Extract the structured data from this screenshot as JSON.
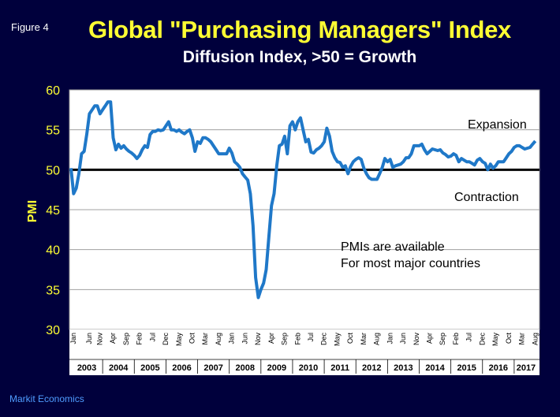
{
  "figure_label": "Figure 4",
  "title": "Global \"Purchasing Managers\" Index",
  "subtitle": "Diffusion Index, >50 = Growth",
  "source": "Markit Economics",
  "colors": {
    "background": "#00003c",
    "plot_background": "#ffffff",
    "line": "#1f78c8",
    "title": "#ffff33",
    "threshold": "#000000"
  },
  "chart_data": {
    "type": "line",
    "ylabel": "PMI",
    "ylim": [
      30,
      60
    ],
    "yticks": [
      30,
      35,
      40,
      45,
      50,
      55,
      60
    ],
    "threshold": 50,
    "grid": true,
    "start": "2003-01",
    "month_ticks": [
      "Jan",
      "Apr",
      "Jul",
      "Oct",
      "Jan",
      "Apr",
      "Jul",
      "Oct",
      "Jan",
      "Apr",
      "Jul",
      "Oct",
      "Jan",
      "Apr",
      "Jul",
      "Oct",
      "Jan",
      "Apr",
      "Jul",
      "Oct"
    ],
    "x_tick_labels": [
      {
        "date": "2003-01",
        "label": "Jan"
      },
      {
        "date": "2003-07",
        "label": "Jun"
      },
      {
        "date": "2003-11",
        "label": "Nov"
      },
      {
        "date": "2004-04",
        "label": "Apr"
      },
      {
        "date": "2004-09",
        "label": "Sep"
      },
      {
        "date": "2005-02",
        "label": "Feb"
      },
      {
        "date": "2005-07",
        "label": "Jul"
      },
      {
        "date": "2005-12",
        "label": "Dec"
      },
      {
        "date": "2006-05",
        "label": "May"
      },
      {
        "date": "2006-10",
        "label": "Oct"
      },
      {
        "date": "2007-03",
        "label": "Mar"
      },
      {
        "date": "2007-08",
        "label": "Aug"
      },
      {
        "date": "2008-01",
        "label": "Jan"
      },
      {
        "date": "2008-06",
        "label": "Jun"
      },
      {
        "date": "2008-11",
        "label": "Nov"
      },
      {
        "date": "2009-04",
        "label": "Apr"
      },
      {
        "date": "2009-09",
        "label": "Sep"
      },
      {
        "date": "2010-02",
        "label": "Feb"
      },
      {
        "date": "2010-07",
        "label": "Jul"
      },
      {
        "date": "2010-12",
        "label": "Dec"
      },
      {
        "date": "2011-05",
        "label": "May"
      },
      {
        "date": "2011-10",
        "label": "Oct"
      },
      {
        "date": "2012-03",
        "label": "Mar"
      },
      {
        "date": "2012-08",
        "label": "Aug"
      },
      {
        "date": "2013-01",
        "label": "Jan"
      },
      {
        "date": "2013-06",
        "label": "Jun"
      },
      {
        "date": "2013-11",
        "label": "Nov"
      },
      {
        "date": "2014-04",
        "label": "Apr"
      },
      {
        "date": "2014-09",
        "label": "Sep"
      },
      {
        "date": "2015-02",
        "label": "Feb"
      },
      {
        "date": "2015-07",
        "label": "Jul"
      },
      {
        "date": "2015-12",
        "label": "Dec"
      },
      {
        "date": "2016-05",
        "label": "May"
      },
      {
        "date": "2016-10",
        "label": "Oct"
      },
      {
        "date": "2017-03",
        "label": "Mar"
      },
      {
        "date": "2017-08",
        "label": "Aug"
      }
    ],
    "years": [
      "2003",
      "2004",
      "2005",
      "2006",
      "2007",
      "2008",
      "2009",
      "2010",
      "2011",
      "2012",
      "2013",
      "2014",
      "2015",
      "2016",
      "2017"
    ],
    "series": [
      {
        "values": [
          50.2,
          47.0,
          47.7,
          49.5,
          52.0,
          52.3,
          54.5,
          57.0,
          57.5,
          58.0,
          58.0,
          57.0,
          57.5,
          58.0,
          58.5,
          58.5,
          54.0,
          52.5,
          53.2,
          52.7,
          53.0,
          52.6,
          52.3,
          52.1,
          51.8,
          51.4,
          51.8,
          52.5,
          53.0,
          52.8,
          54.4,
          54.8,
          54.8,
          55.0,
          54.9,
          55.0,
          55.5,
          56.0,
          55.0,
          55.0,
          54.8,
          55.0,
          54.7,
          54.5,
          54.8,
          55.0,
          54.0,
          52.3,
          53.5,
          53.3,
          54.0,
          54.0,
          53.8,
          53.5,
          53.0,
          52.5,
          52.0,
          52.0,
          52.0,
          52.0,
          52.7,
          52.1,
          51.0,
          50.7,
          50.3,
          49.5,
          49.1,
          48.7,
          47.0,
          43.0,
          36.5,
          34.0,
          35.0,
          35.8,
          37.5,
          41.5,
          45.5,
          47.0,
          50.5,
          53.0,
          53.2,
          54.2,
          52.0,
          55.5,
          56.0,
          55.0,
          56.0,
          56.5,
          55.0,
          53.5,
          53.8,
          52.2,
          52.1,
          52.5,
          52.7,
          53.0,
          53.5,
          55.2,
          54.2,
          52.3,
          51.5,
          51.0,
          50.9,
          50.3,
          50.5,
          49.5,
          50.4,
          51.0,
          51.3,
          51.5,
          51.3,
          50.2,
          49.5,
          49.0,
          48.8,
          48.8,
          48.8,
          49.5,
          50.3,
          51.4,
          51.0,
          51.3,
          50.3,
          50.5,
          50.6,
          50.7,
          51.0,
          51.5,
          51.5,
          52.0,
          53.0,
          53.0,
          53.0,
          53.2,
          52.5,
          52.0,
          52.3,
          52.6,
          52.5,
          52.4,
          52.5,
          52.1,
          51.9,
          51.6,
          51.7,
          52.0,
          51.8,
          51.0,
          51.4,
          51.2,
          51.0,
          51.0,
          50.8,
          50.6,
          51.2,
          51.4,
          51.0,
          50.8,
          50.0,
          50.7,
          50.2,
          50.5,
          51.0,
          51.0,
          51.0,
          51.5,
          52.0,
          52.3,
          52.8,
          53.0,
          53.0,
          52.8,
          52.6,
          52.7,
          52.8,
          53.2,
          53.6
        ]
      }
    ],
    "annotations": [
      "Expansion",
      "Contraction",
      "PMIs are available",
      "For most major countries"
    ]
  }
}
